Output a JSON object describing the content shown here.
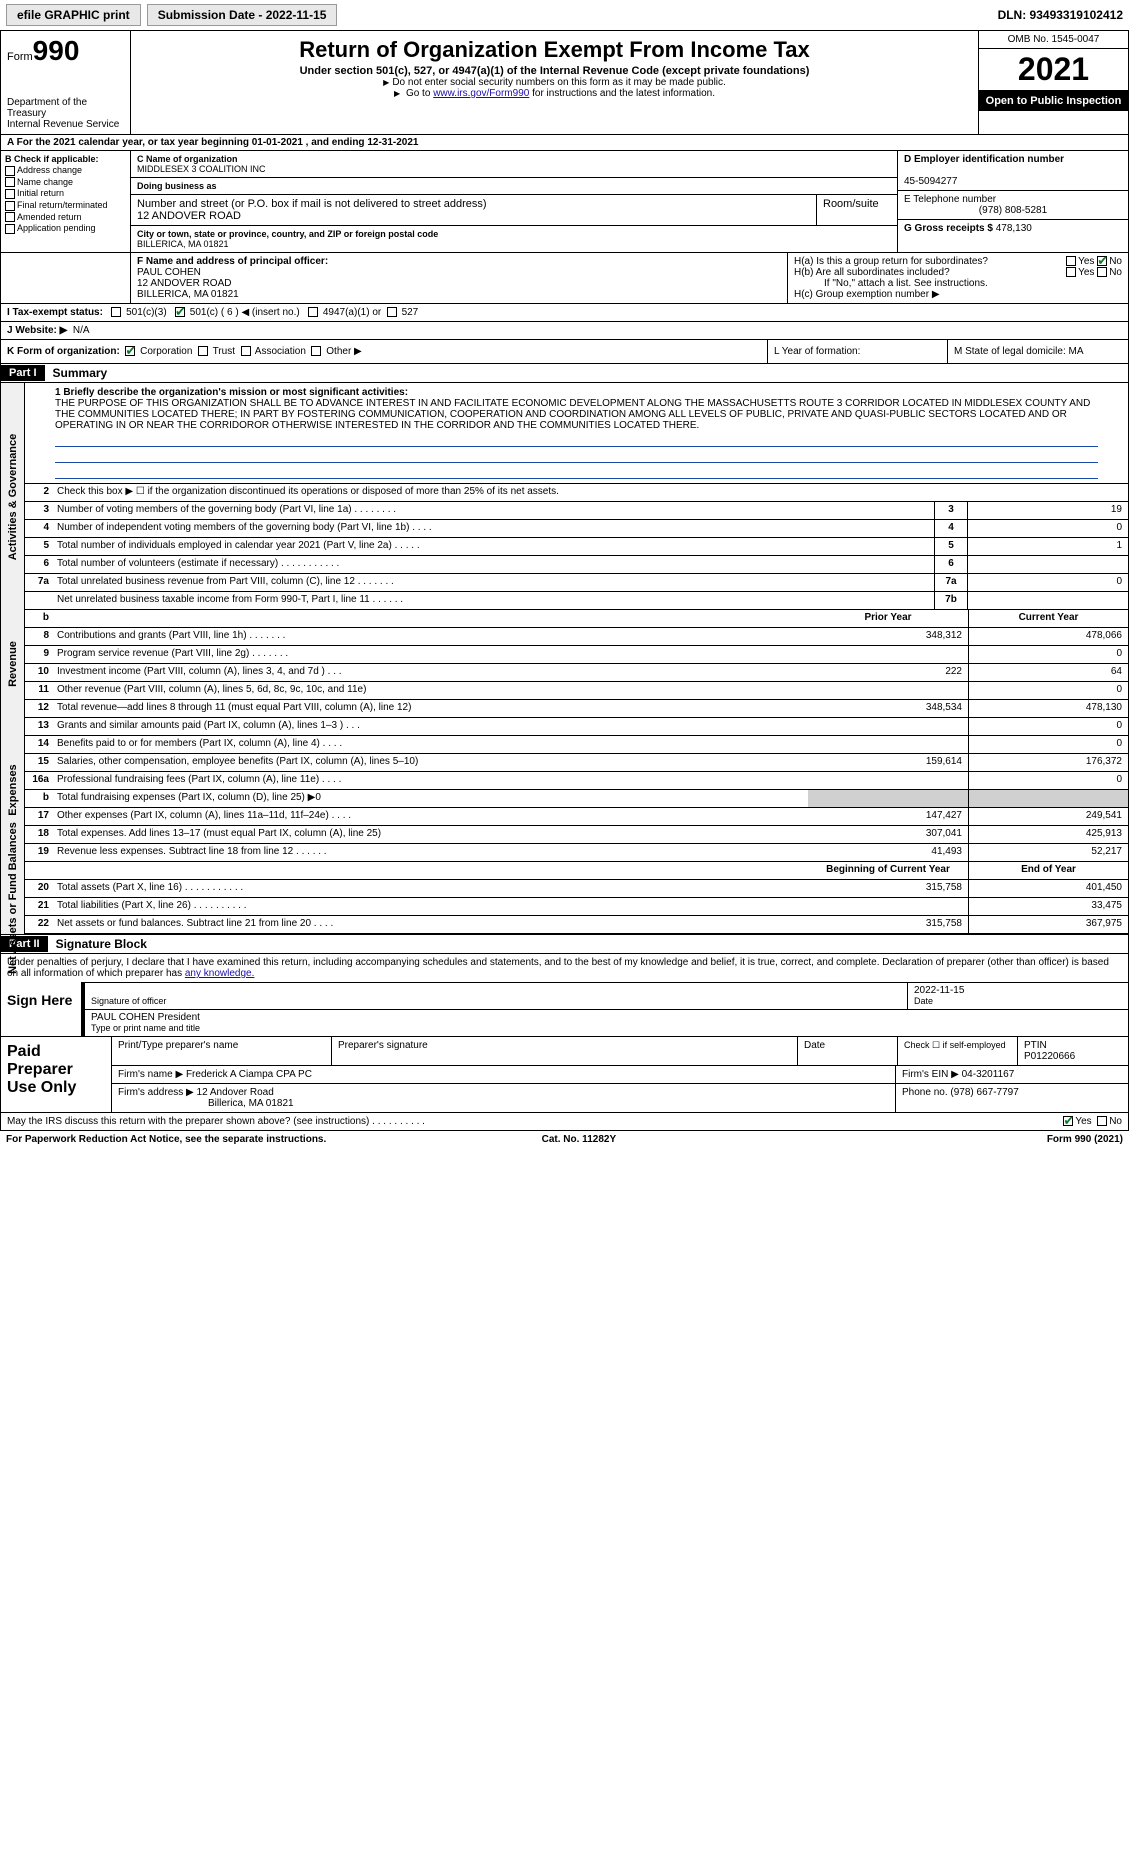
{
  "topbar": {
    "efile_label": "efile GRAPHIC print",
    "submission_label": "Submission Date - 2022-11-15",
    "dln_label": "DLN: 93493319102412"
  },
  "header": {
    "form_label": "Form",
    "form_num": "990",
    "dept": "Department of the Treasury",
    "irs": "Internal Revenue Service",
    "title": "Return of Organization Exempt From Income Tax",
    "subtitle": "Under section 501(c), 527, or 4947(a)(1) of the Internal Revenue Code (except private foundations)",
    "note1": "Do not enter social security numbers on this form as it may be made public.",
    "note2_pre": "Go to ",
    "note2_link": "www.irs.gov/Form990",
    "note2_post": " for instructions and the latest information.",
    "omb": "OMB No. 1545-0047",
    "year": "2021",
    "open": "Open to Public Inspection"
  },
  "row_a": "A  For the 2021 calendar year, or tax year beginning 01-01-2021    , and ending 12-31-2021",
  "section_b": {
    "title": "B Check if applicable:",
    "items": [
      "Address change",
      "Name change",
      "Initial return",
      "Final return/terminated",
      "Amended return",
      "Application pending"
    ]
  },
  "section_c": {
    "name_label": "C Name of organization",
    "name": "MIDDLESEX 3 COALITION INC",
    "dba_label": "Doing business as",
    "dba": "",
    "addr_label": "Number and street (or P.O. box if mail is not delivered to street address)",
    "addr": "12 ANDOVER ROAD",
    "room_label": "Room/suite",
    "city_label": "City or town, state or province, country, and ZIP or foreign postal code",
    "city": "BILLERICA, MA  01821"
  },
  "section_d": {
    "label": "D Employer identification number",
    "value": "45-5094277"
  },
  "section_e": {
    "label": "E Telephone number",
    "value": "(978) 808-5281"
  },
  "section_g": {
    "label": "G Gross receipts $",
    "value": "478,130"
  },
  "section_f": {
    "label": "F  Name and address of principal officer:",
    "name": "PAUL COHEN",
    "addr1": "12 ANDOVER ROAD",
    "addr2": "BILLERICA, MA  01821"
  },
  "section_h": {
    "ha": "H(a)  Is this a group return for subordinates?",
    "ha_yes": "Yes",
    "ha_no": "No",
    "hb": "H(b)  Are all subordinates included?",
    "hb_yes": "Yes",
    "hb_no": "No",
    "hb_note": "If \"No,\" attach a list. See instructions.",
    "hc": "H(c)  Group exemption number ▶"
  },
  "row_i": {
    "label": "I  Tax-exempt status:",
    "opts": [
      "501(c)(3)",
      "501(c) ( 6 ) ◀ (insert no.)",
      "4947(a)(1) or",
      "527"
    ]
  },
  "row_j": {
    "label": "J  Website: ▶",
    "value": "N/A"
  },
  "row_k": {
    "label": "K Form of organization:",
    "opts": [
      "Corporation",
      "Trust",
      "Association",
      "Other ▶"
    ]
  },
  "row_l": {
    "label": "L Year of formation:"
  },
  "row_m": {
    "label": "M State of legal domicile: MA"
  },
  "part1": {
    "hdr": "Part I",
    "title": "Summary"
  },
  "summary": {
    "q1_label": "1  Briefly describe the organization's mission or most significant activities:",
    "mission": "THE PURPOSE OF THIS ORGANIZATION SHALL BE TO ADVANCE INTEREST IN AND FACILITATE ECONOMIC DEVELOPMENT ALONG THE MASSACHUSETTS ROUTE 3 CORRIDOR LOCATED IN MIDDLESEX COUNTY AND THE COMMUNITIES LOCATED THERE; IN PART BY FOSTERING COMMUNICATION, COOPERATION AND COORDINATION AMONG ALL LEVELS OF PUBLIC, PRIVATE AND QUASI-PUBLIC SECTORS LOCATED AND OR OPERATING IN OR NEAR THE CORRIDOROR OTHERWISE INTERESTED IN THE CORRIDOR AND THE COMMUNITIES LOCATED THERE.",
    "q2": "Check this box ▶ ☐ if the organization discontinued its operations or disposed of more than 25% of its net assets.",
    "rows_gov": [
      {
        "n": "3",
        "t": "Number of voting members of the governing body (Part VI, line 1a)   .    .    .    .    .    .    .    .",
        "b": "3",
        "v": "19"
      },
      {
        "n": "4",
        "t": "Number of independent voting members of the governing body (Part VI, line 1b)    .    .    .    .",
        "b": "4",
        "v": "0"
      },
      {
        "n": "5",
        "t": "Total number of individuals employed in calendar year 2021 (Part V, line 2a)   .    .    .    .    .",
        "b": "5",
        "v": "1"
      },
      {
        "n": "6",
        "t": "Total number of volunteers (estimate if necessary)   .    .    .    .    .    .    .    .    .    .    .",
        "b": "6",
        "v": ""
      },
      {
        "n": "7a",
        "t": "Total unrelated business revenue from Part VIII, column (C), line 12   .    .    .    .    .    .    .",
        "b": "7a",
        "v": "0"
      },
      {
        "n": "",
        "t": "Net unrelated business taxable income from Form 990-T, Part I, line 11    .    .    .    .    .    .",
        "b": "7b",
        "v": ""
      }
    ],
    "col_hdr_prior": "Prior Year",
    "col_hdr_current": "Current Year",
    "rows_rev": [
      {
        "n": "8",
        "t": "Contributions and grants (Part VIII, line 1h)   .    .    .    .    .    .    .",
        "p": "348,312",
        "c": "478,066"
      },
      {
        "n": "9",
        "t": "Program service revenue (Part VIII, line 2g)    .    .    .    .    .    .    .",
        "p": "",
        "c": "0"
      },
      {
        "n": "10",
        "t": "Investment income (Part VIII, column (A), lines 3, 4, and 7d )    .    .    .",
        "p": "222",
        "c": "64"
      },
      {
        "n": "11",
        "t": "Other revenue (Part VIII, column (A), lines 5, 6d, 8c, 9c, 10c, and 11e)",
        "p": "",
        "c": "0"
      },
      {
        "n": "12",
        "t": "Total revenue—add lines 8 through 11 (must equal Part VIII, column (A), line 12)",
        "p": "348,534",
        "c": "478,130"
      }
    ],
    "rows_exp": [
      {
        "n": "13",
        "t": "Grants and similar amounts paid (Part IX, column (A), lines 1–3 )  .    .    .",
        "p": "",
        "c": "0"
      },
      {
        "n": "14",
        "t": "Benefits paid to or for members (Part IX, column (A), line 4)   .    .    .    .",
        "p": "",
        "c": "0"
      },
      {
        "n": "15",
        "t": "Salaries, other compensation, employee benefits (Part IX, column (A), lines 5–10)",
        "p": "159,614",
        "c": "176,372"
      },
      {
        "n": "16a",
        "t": "Professional fundraising fees (Part IX, column (A), line 11e)   .    .    .    .",
        "p": "",
        "c": "0"
      },
      {
        "n": "b",
        "t": "Total fundraising expenses (Part IX, column (D), line 25) ▶0",
        "p": "shade",
        "c": "shade"
      },
      {
        "n": "17",
        "t": "Other expenses (Part IX, column (A), lines 11a–11d, 11f–24e)    .    .    .    .",
        "p": "147,427",
        "c": "249,541"
      },
      {
        "n": "18",
        "t": "Total expenses. Add lines 13–17 (must equal Part IX, column (A), line 25)",
        "p": "307,041",
        "c": "425,913"
      },
      {
        "n": "19",
        "t": "Revenue less expenses. Subtract line 18 from line 12    .    .    .    .    .    .",
        "p": "41,493",
        "c": "52,217"
      }
    ],
    "col_hdr_beg": "Beginning of Current Year",
    "col_hdr_end": "End of Year",
    "rows_net": [
      {
        "n": "20",
        "t": "Total assets (Part X, line 16)   .    .    .    .    .    .    .    .    .    .    .",
        "p": "315,758",
        "c": "401,450"
      },
      {
        "n": "21",
        "t": "Total liabilities (Part X, line 26)    .    .    .    .    .    .    .    .    .    .",
        "p": "",
        "c": "33,475"
      },
      {
        "n": "22",
        "t": "Net assets or fund balances. Subtract line 21 from line 20    .    .    .    .",
        "p": "315,758",
        "c": "367,975"
      }
    ],
    "side_gov": "Activities & Governance",
    "side_rev": "Revenue",
    "side_exp": "Expenses",
    "side_net": "Net Assets or Fund Balances",
    "b_row": "b"
  },
  "part2": {
    "hdr": "Part II",
    "title": "Signature Block"
  },
  "sig": {
    "decl": "Under penalties of perjury, I declare that I have examined this return, including accompanying schedules and statements, and to the best of my knowledge and belief, it is true, correct, and complete. Declaration of preparer (other than officer) is based on all information of which preparer has ",
    "decl_link": "any knowledge.",
    "sign_here": "Sign Here",
    "sig_officer": "Signature of officer",
    "date_label": "Date",
    "date": "2022-11-15",
    "name_title": "PAUL COHEN  President",
    "type_label": "Type or print name and title"
  },
  "prep": {
    "label": "Paid Preparer Use Only",
    "hdr_name": "Print/Type preparer's name",
    "hdr_sig": "Preparer's signature",
    "hdr_date": "Date",
    "hdr_check": "Check ☐ if self-employed",
    "hdr_ptin": "PTIN",
    "ptin": "P01220666",
    "firm_name_label": "Firm's name     ▶",
    "firm_name": "Frederick A Ciampa CPA PC",
    "firm_ein_label": "Firm's EIN ▶",
    "firm_ein": "04-3201167",
    "firm_addr_label": "Firm's address ▶",
    "firm_addr1": "12 Andover Road",
    "firm_addr2": "Billerica, MA  01821",
    "phone_label": "Phone no.",
    "phone": "(978) 667-7797"
  },
  "footer": {
    "discuss": "May the IRS discuss this return with the preparer shown above? (see instructions)    .    .    .    .    .    .    .    .    .    .",
    "yes": "Yes",
    "no": "No",
    "paperwork": "For Paperwork Reduction Act Notice, see the separate instructions.",
    "cat": "Cat. No. 11282Y",
    "form": "Form 990 (2021)"
  }
}
